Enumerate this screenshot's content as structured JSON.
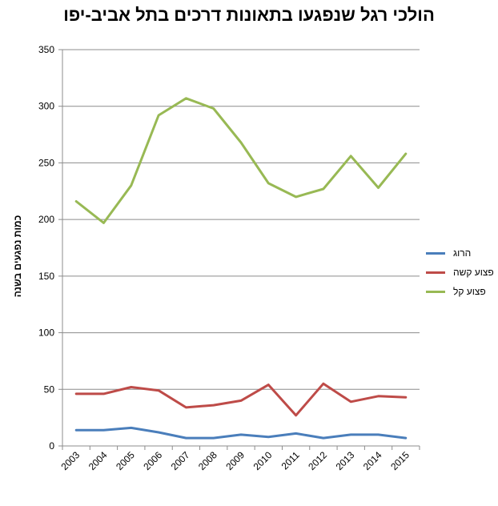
{
  "chart_data": {
    "type": "line",
    "title": "הולכי רגל שנפגעו בתאונות דרכים בתל אביב-יפו",
    "xlabel": "",
    "ylabel": "כמות נפגעים בשנה",
    "categories": [
      "2003",
      "2004",
      "2005",
      "2006",
      "2007",
      "2008",
      "2009",
      "2010",
      "2011",
      "2012",
      "2013",
      "2014",
      "2015"
    ],
    "ylim": [
      0,
      350
    ],
    "yticks": [
      0,
      50,
      100,
      150,
      200,
      250,
      300,
      350
    ],
    "grid": true,
    "legend_position": "right",
    "series": [
      {
        "name": "הרוג",
        "color": "#4a7ebb",
        "values": [
          14,
          14,
          16,
          12,
          7,
          7,
          10,
          8,
          11,
          7,
          10,
          10,
          7
        ]
      },
      {
        "name": "פצוע קשה",
        "color": "#be4b48",
        "values": [
          46,
          46,
          52,
          49,
          34,
          36,
          40,
          54,
          27,
          55,
          39,
          44,
          43
        ]
      },
      {
        "name": "פצוע קל",
        "color": "#98b954",
        "values": [
          216,
          197,
          230,
          292,
          307,
          298,
          268,
          232,
          220,
          227,
          256,
          228,
          258
        ]
      }
    ]
  }
}
